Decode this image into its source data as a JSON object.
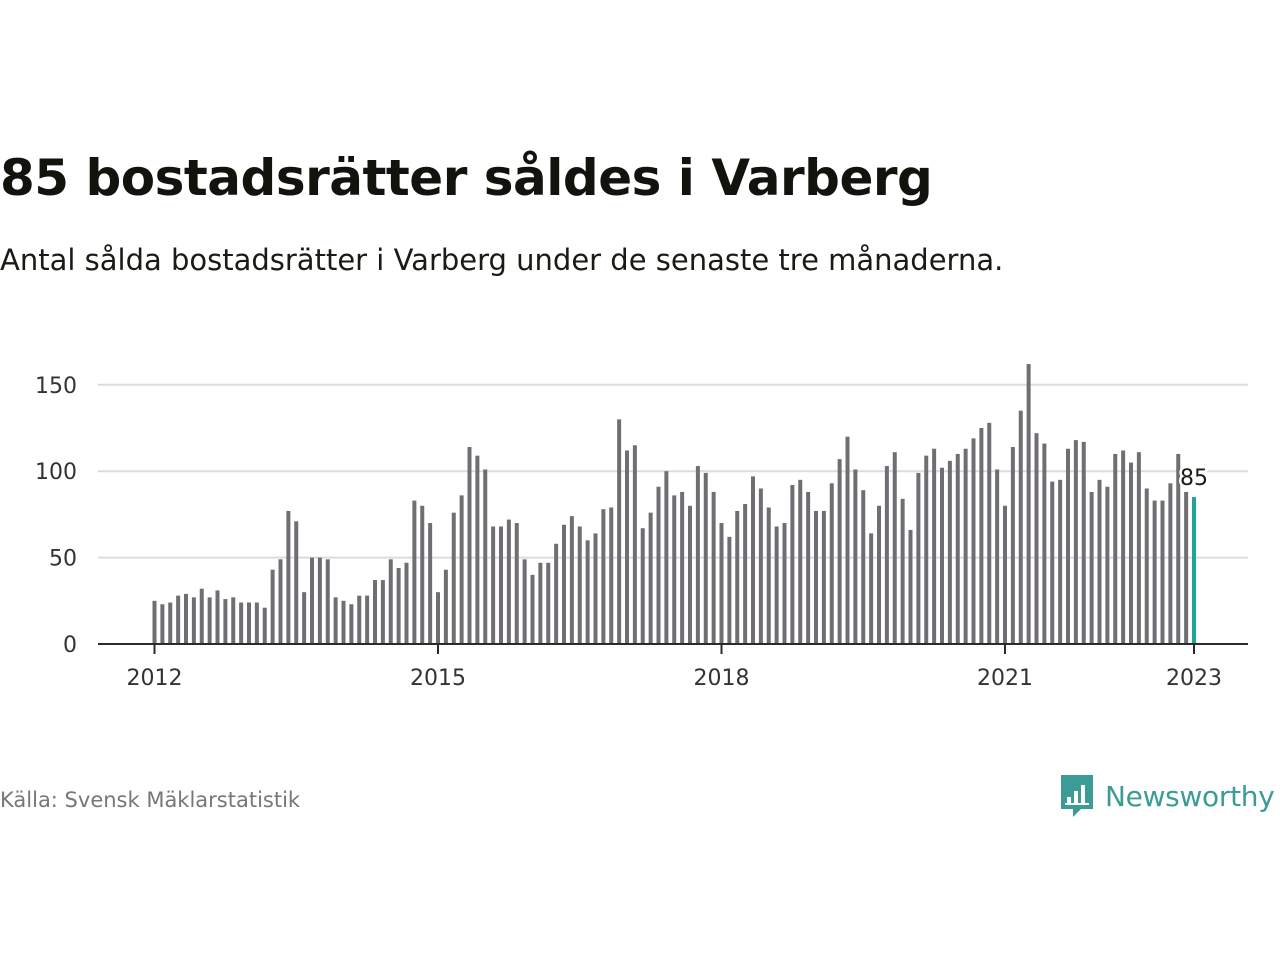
{
  "title": "85 bostadsrätter såldes i Varberg",
  "subtitle": "Antal sålda bostadsrätter i Varberg under de senaste tre månaderna.",
  "source": "Källa: Svensk Mäklarstatistik",
  "brand": {
    "name": "Newsworthy",
    "icon": "newsworthy-logo-icon"
  },
  "colors": {
    "bar": "#6f6f73",
    "highlight": "#1ea59b",
    "grid": "#dcdcdc",
    "axis": "#2b2b2b",
    "brand": "#3b9c95"
  },
  "chart_data": {
    "type": "bar",
    "title": "85 bostadsrätter såldes i Varberg",
    "subtitle": "Antal sålda bostadsrätter i Varberg under de senaste tre månaderna.",
    "x_start": "2012-01",
    "x_end": "2023-01",
    "x_ticks": [
      "2012",
      "2015",
      "2018",
      "2021",
      "2023"
    ],
    "y_ticks": [
      0,
      50,
      100,
      150
    ],
    "ylim": [
      0,
      165
    ],
    "grid": true,
    "highlight_label": "85",
    "values": [
      25,
      23,
      24,
      28,
      29,
      27,
      32,
      27,
      31,
      26,
      27,
      24,
      24,
      24,
      21,
      43,
      49,
      77,
      71,
      30,
      50,
      50,
      49,
      27,
      25,
      23,
      28,
      28,
      37,
      37,
      49,
      44,
      47,
      83,
      80,
      70,
      30,
      43,
      76,
      86,
      114,
      109,
      101,
      68,
      68,
      72,
      70,
      49,
      40,
      47,
      47,
      58,
      69,
      74,
      68,
      60,
      64,
      78,
      79,
      130,
      112,
      115,
      67,
      76,
      91,
      100,
      86,
      88,
      80,
      103,
      99,
      88,
      70,
      62,
      77,
      81,
      97,
      90,
      79,
      68,
      70,
      92,
      95,
      88,
      77,
      77,
      93,
      107,
      120,
      101,
      89,
      64,
      80,
      103,
      111,
      84,
      66,
      99,
      109,
      113,
      102,
      106,
      110,
      113,
      119,
      125,
      128,
      101,
      80,
      114,
      135,
      162,
      122,
      116,
      94,
      95,
      113,
      118,
      117,
      88,
      95,
      91,
      110,
      112,
      105,
      111,
      90,
      83,
      83,
      93,
      110,
      88,
      85
    ]
  }
}
